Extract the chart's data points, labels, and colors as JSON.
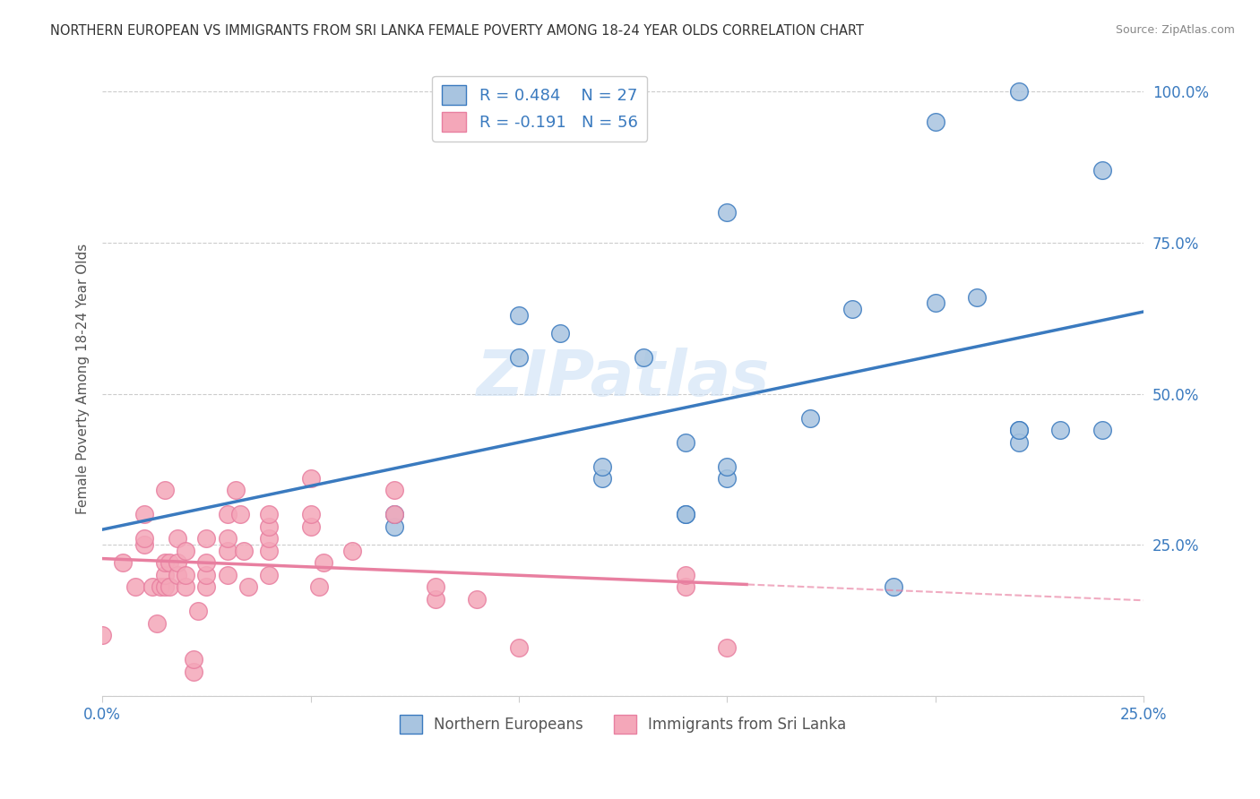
{
  "title": "NORTHERN EUROPEAN VS IMMIGRANTS FROM SRI LANKA FEMALE POVERTY AMONG 18-24 YEAR OLDS CORRELATION CHART",
  "source": "Source: ZipAtlas.com",
  "ylabel": "Female Poverty Among 18-24 Year Olds",
  "xlim": [
    0.0,
    0.25
  ],
  "ylim": [
    0.0,
    1.05
  ],
  "x_ticks": [
    0.0,
    0.05,
    0.1,
    0.15,
    0.2,
    0.25
  ],
  "x_tick_labels": [
    "0.0%",
    "",
    "",
    "",
    "",
    "25.0%"
  ],
  "y_ticks": [
    0.0,
    0.25,
    0.5,
    0.75,
    1.0
  ],
  "y_tick_labels": [
    "",
    "25.0%",
    "50.0%",
    "75.0%",
    "100.0%"
  ],
  "legend_label_blue": "Northern Europeans",
  "legend_label_pink": "Immigrants from Sri Lanka",
  "legend_text_blue": "R = 0.484    N = 27",
  "legend_text_pink": "R = -0.191   N = 56",
  "blue_color": "#a8c4e0",
  "pink_color": "#f4a7b9",
  "blue_line_color": "#3a7abf",
  "pink_line_color": "#e87fa0",
  "watermark": "ZIPatlas",
  "blue_points_x": [
    0.07,
    0.07,
    0.1,
    0.1,
    0.11,
    0.12,
    0.12,
    0.13,
    0.14,
    0.14,
    0.14,
    0.15,
    0.15,
    0.15,
    0.17,
    0.18,
    0.19,
    0.2,
    0.2,
    0.21,
    0.22,
    0.22,
    0.22,
    0.22,
    0.23,
    0.24,
    0.24
  ],
  "blue_points_y": [
    0.28,
    0.3,
    0.56,
    0.63,
    0.6,
    0.36,
    0.38,
    0.56,
    0.42,
    0.3,
    0.3,
    0.36,
    0.38,
    0.8,
    0.46,
    0.64,
    0.18,
    0.65,
    0.95,
    0.66,
    0.44,
    0.42,
    0.44,
    1.0,
    0.44,
    0.44,
    0.87
  ],
  "pink_points_x": [
    0.0,
    0.005,
    0.008,
    0.01,
    0.01,
    0.01,
    0.012,
    0.013,
    0.014,
    0.015,
    0.015,
    0.015,
    0.015,
    0.016,
    0.016,
    0.018,
    0.018,
    0.018,
    0.02,
    0.02,
    0.02,
    0.022,
    0.022,
    0.023,
    0.025,
    0.025,
    0.025,
    0.025,
    0.03,
    0.03,
    0.03,
    0.03,
    0.032,
    0.033,
    0.034,
    0.035,
    0.04,
    0.04,
    0.04,
    0.04,
    0.04,
    0.05,
    0.05,
    0.05,
    0.052,
    0.053,
    0.06,
    0.07,
    0.07,
    0.08,
    0.08,
    0.09,
    0.1,
    0.14,
    0.14,
    0.15
  ],
  "pink_points_y": [
    0.1,
    0.22,
    0.18,
    0.25,
    0.26,
    0.3,
    0.18,
    0.12,
    0.18,
    0.18,
    0.2,
    0.22,
    0.34,
    0.18,
    0.22,
    0.2,
    0.22,
    0.26,
    0.18,
    0.2,
    0.24,
    0.04,
    0.06,
    0.14,
    0.18,
    0.2,
    0.22,
    0.26,
    0.2,
    0.24,
    0.26,
    0.3,
    0.34,
    0.3,
    0.24,
    0.18,
    0.2,
    0.24,
    0.26,
    0.28,
    0.3,
    0.28,
    0.3,
    0.36,
    0.18,
    0.22,
    0.24,
    0.3,
    0.34,
    0.16,
    0.18,
    0.16,
    0.08,
    0.18,
    0.2,
    0.08
  ]
}
